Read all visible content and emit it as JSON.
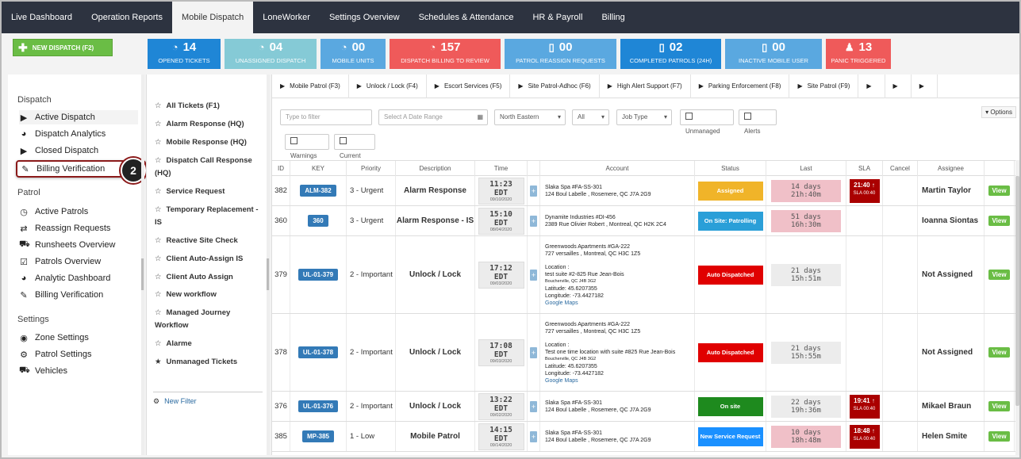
{
  "topnav": {
    "tabs": [
      "Live Dashboard",
      "Operation Reports",
      "Mobile Dispatch",
      "LoneWorker",
      "Settings Overview",
      "Schedules & Attendance",
      "HR & Payroll",
      "Billing"
    ],
    "active_index": 2
  },
  "statbar": {
    "new_dispatch_label": "NEW DISPATCH (F2)",
    "stats": [
      {
        "num": "14",
        "label": "OPENED TICKETS",
        "color": "#1f86d6",
        "icon": "pie-icon"
      },
      {
        "num": "04",
        "label": "UNASSIGNED DISPATCH",
        "color": "#85cad6",
        "icon": "pie-icon"
      },
      {
        "num": "00",
        "label": "MOBILE UNITS",
        "color": "#5aa8e0",
        "icon": "pie-icon"
      },
      {
        "num": "157",
        "label": "DISPATCH BILLING TO REVIEW",
        "color": "#ef5a5a",
        "icon": "pie-icon"
      },
      {
        "num": "00",
        "label": "PATROL REASSIGN REQUESTS",
        "color": "#5aa8e0",
        "icon": "phone-icon"
      },
      {
        "num": "02",
        "label": "COMPLETED PATROLS (24H)",
        "color": "#1f86d6",
        "icon": "phone-icon"
      },
      {
        "num": "00",
        "label": "INACTIVE MOBILE USER",
        "color": "#5aa8e0",
        "icon": "phone-icon"
      },
      {
        "num": "13",
        "label": "PANIC TRIGGERED",
        "color": "#ef5a5a",
        "icon": "person-icon"
      }
    ]
  },
  "sidebar": {
    "dispatch_title": "Dispatch",
    "dispatch_items": [
      "Active Dispatch",
      "Dispatch Analytics",
      "Closed Dispatch",
      "Billing Verification"
    ],
    "patrol_title": "Patrol",
    "patrol_items": [
      "Active Patrols",
      "Reassign Requests",
      "Runsheets Overview",
      "Patrols Overview",
      "Analytic Dashboard",
      "Billing Verification"
    ],
    "settings_title": "Settings",
    "settings_items": [
      "Zone Settings",
      "Patrol Settings",
      "Vehicles"
    ],
    "step_badge": "2"
  },
  "filters": {
    "items": [
      "All Tickets (F1)",
      "Alarm Response (HQ)",
      "Mobile Response (HQ)",
      "Dispatch Call Response (HQ)",
      "Service Request",
      "Temporary Replacement - IS",
      "Reactive Site Check",
      "Client Auto-Assign IS",
      "Client Auto Assign",
      "New workflow",
      "Managed Journey Workflow",
      "Alarme",
      "Unmanaged Tickets"
    ],
    "new_filter": "New Filter"
  },
  "main": {
    "tabs": [
      "Mobile Patrol (F3)",
      "Unlock / Lock (F4)",
      "Escort Services (F5)",
      "Site Patrol-Adhoc (F6)",
      "High Alert Support (F7)",
      "Parking Enforcement (F8)",
      "Site Patrol (F9)",
      "",
      "",
      ""
    ],
    "filter_placeholder": "Type to filter",
    "date_placeholder": "Select A Date Range",
    "region": "North Eastern",
    "all": "All",
    "job_type": "Job Type",
    "unmanaged": "Unmanaged",
    "alerts": "Alerts",
    "warnings": "Warnings",
    "current": "Current",
    "options": "Options",
    "headers": [
      "ID",
      "KEY",
      "Priority",
      "Description",
      "Time",
      "",
      "Account",
      "Status",
      "Last",
      "SLA",
      "Cancel",
      "Assignee",
      ""
    ],
    "rows": [
      {
        "id": "382",
        "key": "ALM-382",
        "priority": "3 - Urgent",
        "desc": "Alarm Response",
        "time": "11:23 EDT",
        "date": "09/10/2020",
        "acct": [
          "Slaka Spa #FA-SS-301",
          "124 Boul Labelle , Rosemere, QC J7A 2G9"
        ],
        "status": "Assigned",
        "status_color": "#f0b429",
        "last": "14 days 21h:40m",
        "last_grey": false,
        "sla": "21:40",
        "sla_sub": "SLA 00:40",
        "assignee": "Martin Taylor",
        "view": "View"
      },
      {
        "id": "360",
        "key": "360",
        "priority": "3 - Urgent",
        "desc": "Alarm Response - IS",
        "time": "15:10 EDT",
        "date": "08/04/2020",
        "acct": [
          "Dynamite Industries #DI-456",
          "2389 Rue Olivier Robert , Montreal, QC H2K 2C4"
        ],
        "status": "On Site: Patrolling",
        "status_color": "#2a9fd8",
        "last": "51 days 16h:30m",
        "last_grey": false,
        "sla": "",
        "sla_sub": "",
        "assignee": "Ioanna Siontas",
        "view": "View"
      },
      {
        "id": "379",
        "key": "UL-01-379",
        "priority": "2 - Important",
        "desc": "Unlock / Lock",
        "time": "17:12 EDT",
        "date": "09/03/2020",
        "acct": [
          "Greenwoods Apartments #GA-222",
          "727 versailles , Montreal, QC H3C 1Z5",
          "",
          "Location :",
          "test suite #2-825 Rue Jean-Bois",
          "Boucherville, QC J4B 3G2",
          "Latitude: 45.6207355",
          "Longitude: -73.4427182",
          "Google Maps"
        ],
        "status": "Auto Dispatched",
        "status_color": "#e00000",
        "last": "21 days 15h:51m",
        "last_grey": true,
        "sla": "",
        "sla_sub": "",
        "assignee": "Not Assigned",
        "view": "View"
      },
      {
        "id": "378",
        "key": "UL-01-378",
        "priority": "2 - Important",
        "desc": "Unlock / Lock",
        "time": "17:08 EDT",
        "date": "09/03/2020",
        "acct": [
          "Greenwoods Apartments #GA-222",
          "727 versailles , Montreal, QC H3C 1Z5",
          "",
          "Location :",
          "Test one time location with suite #825 Rue Jean-Bois",
          "Boucherville, QC J4B 3G2",
          "Latitude: 45.6207355",
          "Longitude: -73.4427182",
          "Google Maps"
        ],
        "status": "Auto Dispatched",
        "status_color": "#e00000",
        "last": "21 days 15h:55m",
        "last_grey": true,
        "sla": "",
        "sla_sub": "",
        "assignee": "Not Assigned",
        "view": "View"
      },
      {
        "id": "376",
        "key": "UL-01-376",
        "priority": "2 - Important",
        "desc": "Unlock / Lock",
        "time": "13:22 EDT",
        "date": "09/02/2020",
        "acct": [
          "Slaka Spa #FA-SS-301",
          "124 Boul Labelle , Rosemere, QC J7A 2G9"
        ],
        "status": "On site",
        "status_color": "#1e8a1e",
        "last": "22 days 19h:36m",
        "last_grey": true,
        "sla": "19:41",
        "sla_sub": "SLA 00:40",
        "assignee": "Mikael Braun",
        "view": "View"
      },
      {
        "id": "385",
        "key": "MP-385",
        "priority": "1 - Low",
        "desc": "Mobile Patrol",
        "time": "14:15 EDT",
        "date": "09/14/2020",
        "acct": [
          "Slaka Spa #FA-SS-301",
          "124 Boul Labelle , Rosemere, QC J7A 2G9"
        ],
        "status": "New Service Request",
        "status_color": "#1a90ff",
        "last": "10 days 18h:48m",
        "last_grey": false,
        "sla": "18:48",
        "sla_sub": "SLA 00:40",
        "assignee": "Helen Smite",
        "view": "View"
      }
    ]
  }
}
